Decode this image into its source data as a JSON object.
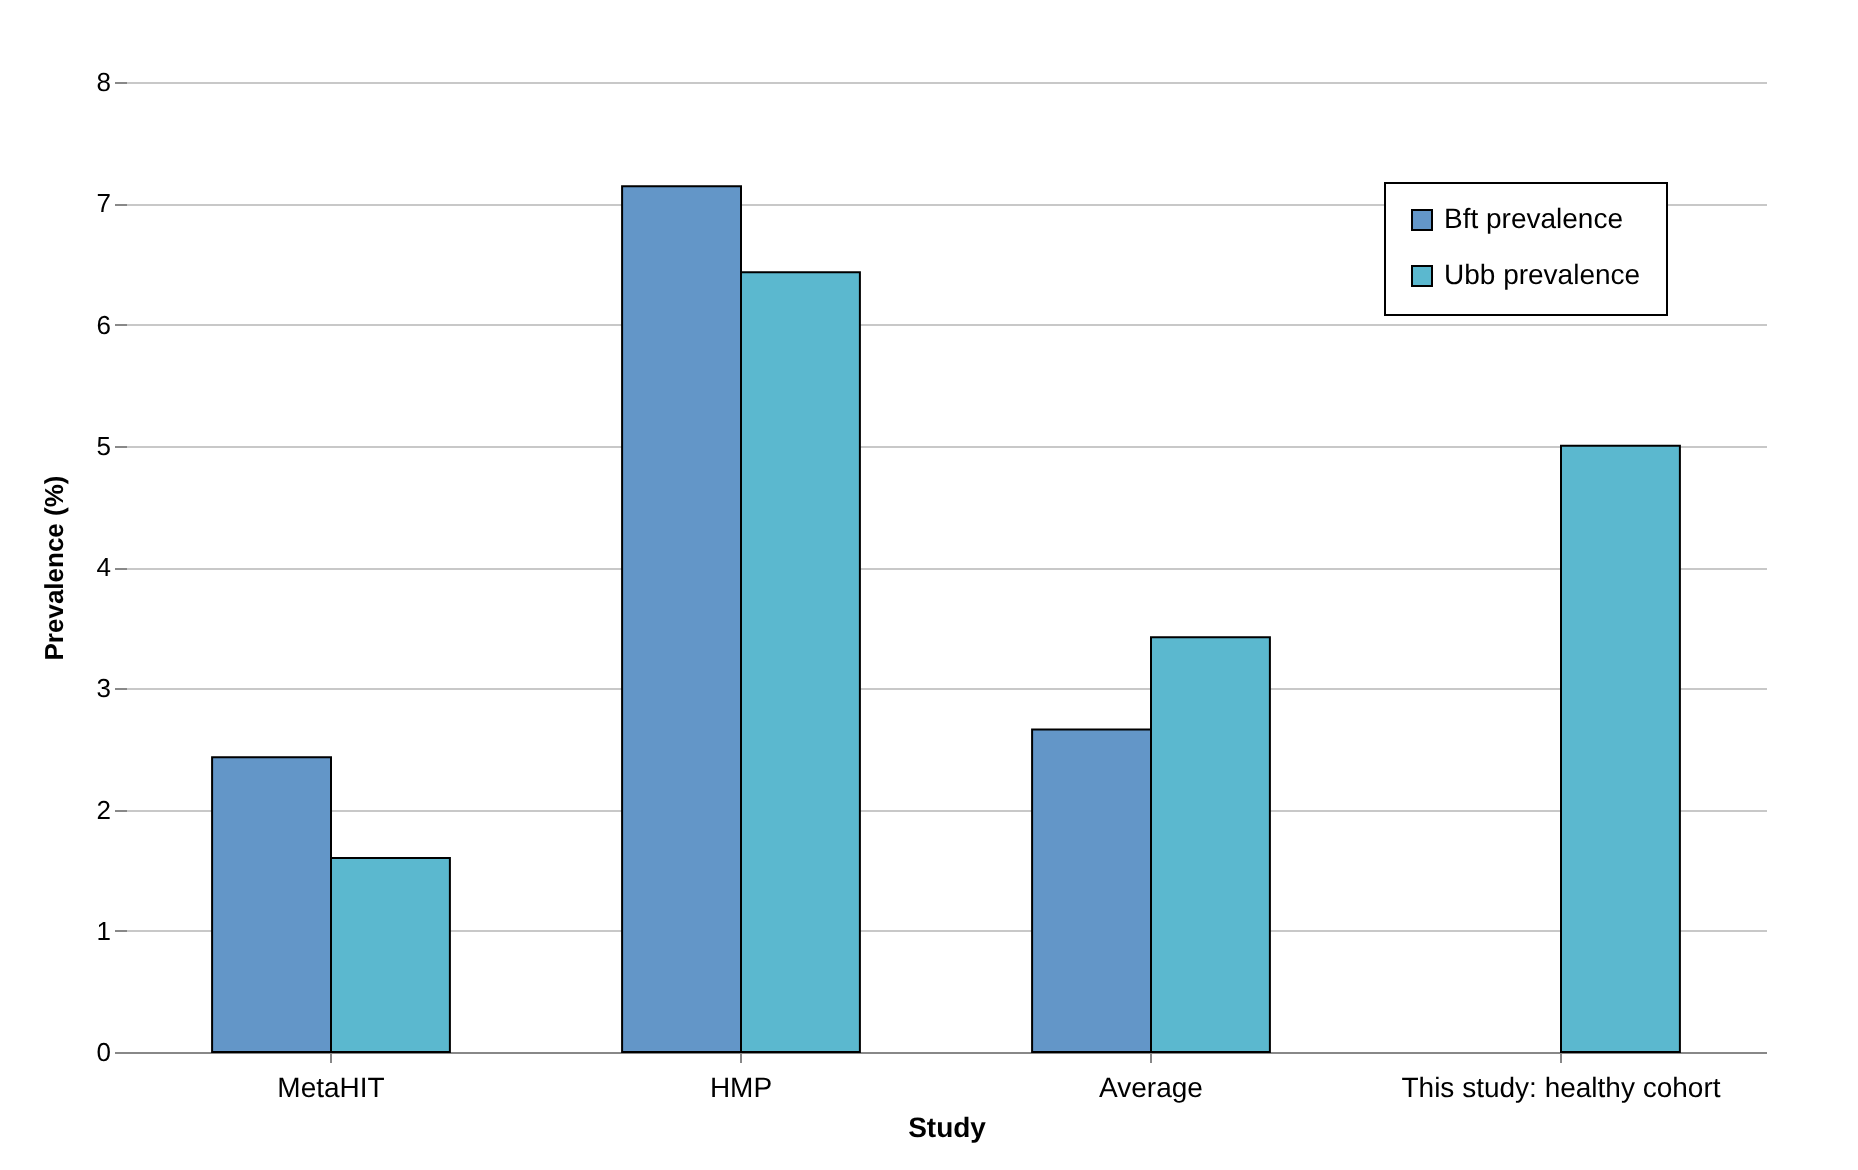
{
  "chart_data": {
    "type": "bar",
    "xlabel": "Study",
    "ylabel": "Prevalence (%)",
    "categories": [
      "MetaHIT",
      "HMP",
      "Average",
      "This study: healthy cohort"
    ],
    "series": [
      {
        "name": "Bft prevalence",
        "color": "#6396c8",
        "values": [
          2.43,
          7.14,
          2.66,
          null
        ]
      },
      {
        "name": "Ubb prevalence",
        "color": "#5bb8cf",
        "values": [
          1.6,
          6.43,
          3.42,
          5.0
        ]
      }
    ],
    "ylim": [
      0,
      8
    ],
    "yticks": [
      0,
      1,
      2,
      3,
      4,
      5,
      6,
      7,
      8
    ],
    "grid": "y",
    "legend": "top right"
  }
}
